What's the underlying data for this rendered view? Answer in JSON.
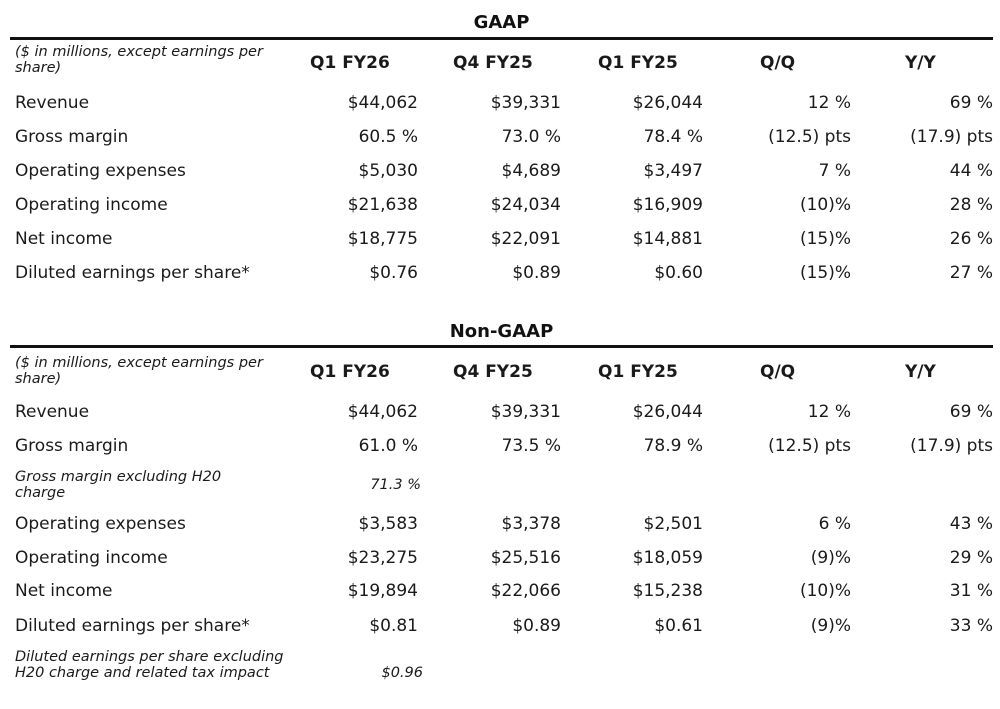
{
  "tables": [
    {
      "title": "GAAP",
      "header": {
        "note": "($ in millions, except earnings per share)",
        "columns": [
          "Q1 FY26",
          "Q4 FY25",
          "Q1 FY25",
          "Q/Q",
          "Y/Y"
        ]
      },
      "rows": [
        {
          "label": "Revenue",
          "values": [
            "$44,062",
            "$39,331",
            "$26,044",
            "12 %",
            "69 %"
          ]
        },
        {
          "label": "Gross margin",
          "values": [
            "60.5 %",
            "73.0 %",
            "78.4 %",
            "(12.5) pts",
            "(17.9) pts"
          ]
        },
        {
          "label": "Operating expenses",
          "values": [
            "$5,030",
            "$4,689",
            "$3,497",
            "7 %",
            "44 %"
          ]
        },
        {
          "label": "Operating income",
          "values": [
            "$21,638",
            "$24,034",
            "$16,909",
            "(10)%",
            "28 %"
          ]
        },
        {
          "label": "Net income",
          "values": [
            "$18,775",
            "$22,091",
            "$14,881",
            "(15)%",
            "26 %"
          ]
        },
        {
          "label": "Diluted earnings per share*",
          "values": [
            "$0.76",
            "$0.89",
            "$0.60",
            "(15)%",
            "27 %"
          ]
        }
      ]
    },
    {
      "title": "Non-GAAP",
      "header": {
        "note": "($ in millions, except earnings per share)",
        "columns": [
          "Q1 FY26",
          "Q4 FY25",
          "Q1 FY25",
          "Q/Q",
          "Y/Y"
        ]
      },
      "rows": [
        {
          "label": "Revenue",
          "values": [
            "$44,062",
            "$39,331",
            "$26,044",
            "12 %",
            "69 %"
          ]
        },
        {
          "label": "Gross margin",
          "values": [
            "61.0 %",
            "73.5 %",
            "78.9 %",
            "(12.5) pts",
            "(17.9) pts"
          ]
        },
        {
          "label": "Gross margin excluding H20 charge",
          "italic": true,
          "values": [
            "71.3 %",
            "",
            "",
            "",
            ""
          ]
        },
        {
          "label": "Operating expenses",
          "values": [
            "$3,583",
            "$3,378",
            "$2,501",
            "6 %",
            "43 %"
          ]
        },
        {
          "label": "Operating income",
          "values": [
            "$23,275",
            "$25,516",
            "$18,059",
            "(9)%",
            "29 %"
          ]
        },
        {
          "label": "Net income",
          "values": [
            "$19,894",
            "$22,066",
            "$15,238",
            "(10)%",
            "31 %"
          ]
        },
        {
          "label": "Diluted earnings per share*",
          "values": [
            "$0.81",
            "$0.89",
            "$0.61",
            "(9)%",
            "33 %"
          ]
        },
        {
          "label": "Diluted earnings per share excluding H20 charge and related tax impact",
          "italic": true,
          "values": [
            "$0.96",
            "",
            "",
            "",
            ""
          ]
        }
      ]
    }
  ]
}
